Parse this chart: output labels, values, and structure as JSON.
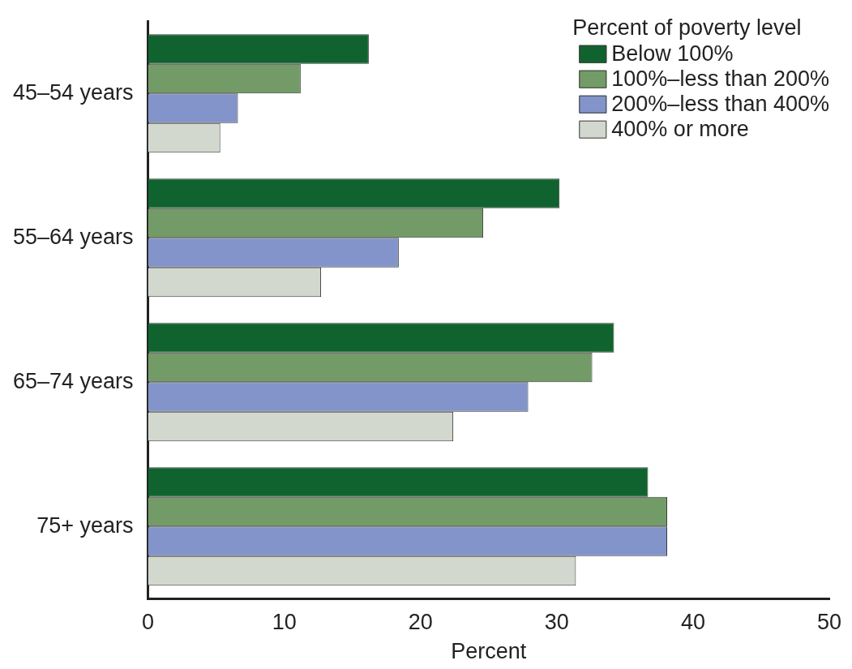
{
  "chart_data": {
    "type": "bar",
    "orientation": "horizontal",
    "xlabel": "Percent",
    "legend_title": "Percent of poverty level",
    "legend": "top right",
    "grid": false,
    "categories": [
      "45–54 years",
      "55–64 years",
      "65–74 years",
      "75+ years"
    ],
    "xlim": [
      0,
      50
    ],
    "xticks": [
      0,
      10,
      20,
      30,
      40,
      50
    ],
    "series": [
      {
        "name": "Below 100%",
        "color": "#10632e",
        "values": [
          16.2,
          30.2,
          34.2,
          36.7
        ]
      },
      {
        "name": "100%–less than 200%",
        "color": "#739b67",
        "values": [
          11.2,
          24.6,
          32.6,
          38.1
        ]
      },
      {
        "name": "200%–less than 400%",
        "color": "#8294c9",
        "values": [
          6.6,
          18.4,
          27.9,
          38.1
        ]
      },
      {
        "name": "400% or more",
        "color": "#d3d8ce",
        "values": [
          5.3,
          12.7,
          22.4,
          31.4
        ]
      }
    ]
  }
}
